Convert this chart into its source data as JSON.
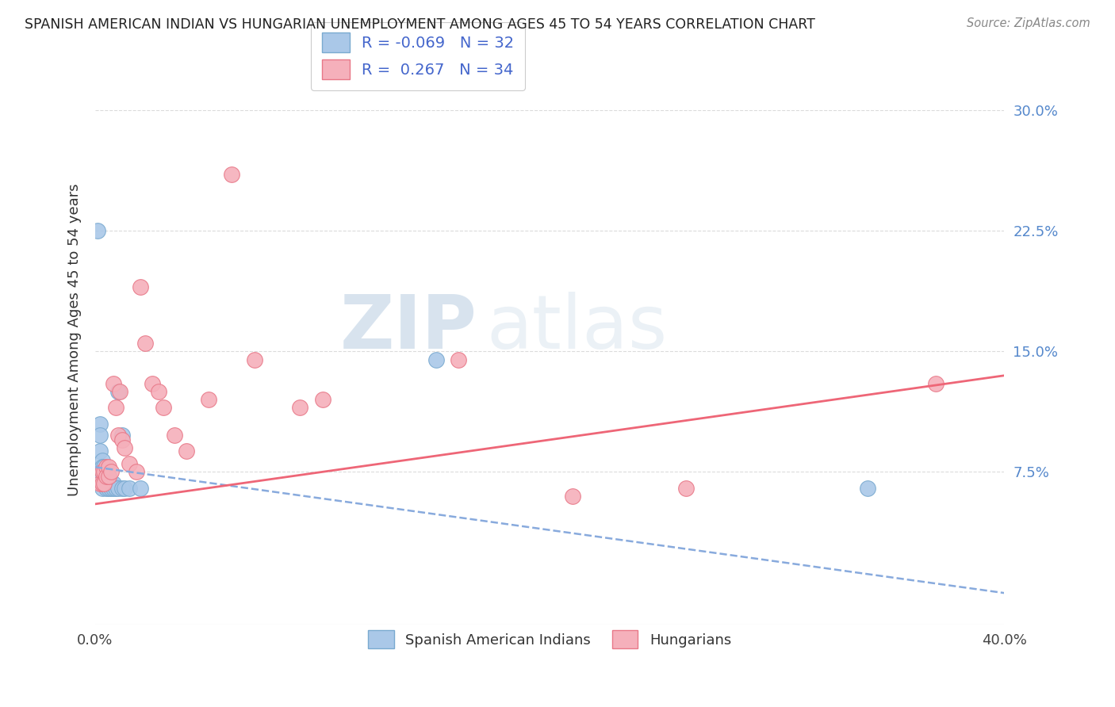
{
  "title": "SPANISH AMERICAN INDIAN VS HUNGARIAN UNEMPLOYMENT AMONG AGES 45 TO 54 YEARS CORRELATION CHART",
  "source": "Source: ZipAtlas.com",
  "ylabel": "Unemployment Among Ages 45 to 54 years",
  "xlim": [
    0.0,
    0.4
  ],
  "ylim": [
    -0.02,
    0.335
  ],
  "yticks": [
    0.075,
    0.15,
    0.225,
    0.3
  ],
  "ytick_labels": [
    "7.5%",
    "15.0%",
    "22.5%",
    "30.0%"
  ],
  "color_blue": "#aac8e8",
  "color_pink": "#f5b0bb",
  "edge_blue": "#7aaad0",
  "edge_pink": "#e87888",
  "line_blue_color": "#88aadd",
  "line_pink_color": "#ee6677",
  "grid_color": "#cccccc",
  "watermark_zip": "ZIP",
  "watermark_atlas": "atlas",
  "blue_scatter": [
    [
      0.001,
      0.225
    ],
    [
      0.002,
      0.105
    ],
    [
      0.002,
      0.098
    ],
    [
      0.002,
      0.088
    ],
    [
      0.003,
      0.082
    ],
    [
      0.003,
      0.078
    ],
    [
      0.003,
      0.072
    ],
    [
      0.003,
      0.068
    ],
    [
      0.003,
      0.065
    ],
    [
      0.004,
      0.078
    ],
    [
      0.004,
      0.072
    ],
    [
      0.004,
      0.068
    ],
    [
      0.005,
      0.075
    ],
    [
      0.005,
      0.068
    ],
    [
      0.005,
      0.065
    ],
    [
      0.006,
      0.072
    ],
    [
      0.006,
      0.068
    ],
    [
      0.006,
      0.065
    ],
    [
      0.007,
      0.068
    ],
    [
      0.007,
      0.065
    ],
    [
      0.008,
      0.068
    ],
    [
      0.008,
      0.065
    ],
    [
      0.009,
      0.065
    ],
    [
      0.01,
      0.125
    ],
    [
      0.01,
      0.065
    ],
    [
      0.012,
      0.098
    ],
    [
      0.012,
      0.065
    ],
    [
      0.013,
      0.065
    ],
    [
      0.015,
      0.065
    ],
    [
      0.02,
      0.065
    ],
    [
      0.15,
      0.145
    ],
    [
      0.34,
      0.065
    ]
  ],
  "pink_scatter": [
    [
      0.002,
      0.068
    ],
    [
      0.003,
      0.075
    ],
    [
      0.003,
      0.068
    ],
    [
      0.004,
      0.075
    ],
    [
      0.004,
      0.068
    ],
    [
      0.005,
      0.078
    ],
    [
      0.005,
      0.072
    ],
    [
      0.006,
      0.078
    ],
    [
      0.006,
      0.072
    ],
    [
      0.007,
      0.075
    ],
    [
      0.008,
      0.13
    ],
    [
      0.009,
      0.115
    ],
    [
      0.01,
      0.098
    ],
    [
      0.011,
      0.125
    ],
    [
      0.012,
      0.095
    ],
    [
      0.013,
      0.09
    ],
    [
      0.015,
      0.08
    ],
    [
      0.018,
      0.075
    ],
    [
      0.02,
      0.19
    ],
    [
      0.022,
      0.155
    ],
    [
      0.025,
      0.13
    ],
    [
      0.028,
      0.125
    ],
    [
      0.03,
      0.115
    ],
    [
      0.035,
      0.098
    ],
    [
      0.04,
      0.088
    ],
    [
      0.05,
      0.12
    ],
    [
      0.06,
      0.26
    ],
    [
      0.07,
      0.145
    ],
    [
      0.09,
      0.115
    ],
    [
      0.1,
      0.12
    ],
    [
      0.16,
      0.145
    ],
    [
      0.21,
      0.06
    ],
    [
      0.26,
      0.065
    ],
    [
      0.37,
      0.13
    ]
  ],
  "blue_line_x": [
    0.0,
    0.5
  ],
  "blue_line_y": [
    0.078,
    -0.02
  ],
  "pink_line_x": [
    0.0,
    0.4
  ],
  "pink_line_y": [
    0.055,
    0.135
  ]
}
